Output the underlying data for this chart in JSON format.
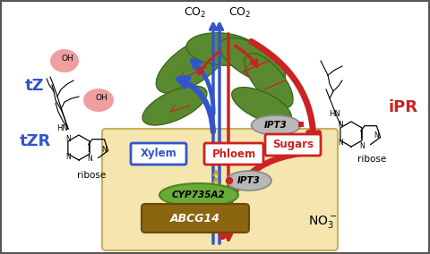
{
  "bg_color": "#ffffff",
  "soil_color": "#f5e6b0",
  "soil_edge_color": "#c8b060",
  "leaf_color": "#5a8a30",
  "leaf_edge_color": "#3a6a18",
  "arrow_blue": "#3355cc",
  "arrow_red": "#cc2222",
  "gold_color": "#c8a030",
  "ipt3_color": "#b0b0b0",
  "cyp_color": "#6aaa3a",
  "abcg_color": "#8B6510",
  "tz_color": "#3355cc",
  "ipr_color": "#cc2222",
  "label_tZ": "tZ",
  "label_tZR": "tZR",
  "label_iPR": "iPR",
  "label_xylem": "Xylem",
  "label_phloem": "Phloem",
  "label_sugars": "Sugars",
  "label_ipt3": "IPT3",
  "label_cyp": "CYP735A2",
  "label_abcg": "ABCG14",
  "label_ribose": "ribose",
  "label_hn": "HN",
  "label_oh": "OH",
  "label_n": "N",
  "label_co2": "CO$_2$",
  "label_no3": "NO$_3^-$"
}
